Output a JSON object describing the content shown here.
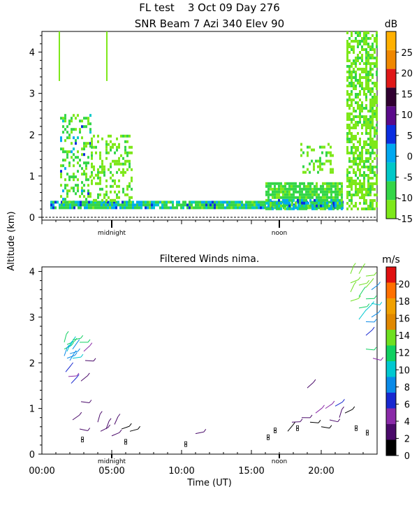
{
  "header": {
    "title_line1": "FL test    3 Oct 09 Day 276",
    "title_line2": "SNR Beam 7 Azi 340 Elev 90"
  },
  "shared": {
    "ylabel": "Altitude (km)",
    "xlabel": "Time (UT)",
    "x_ticks": [
      "00:00",
      "05:00",
      "10:00",
      "15:00",
      "20:00"
    ],
    "midnight_label": "midnight",
    "noon_label": "noon"
  },
  "chart_data": [
    {
      "type": "heatmap",
      "title": "",
      "ylabel": "Altitude (km)",
      "colorbar": {
        "unit": "dB",
        "ticks": [
          "25",
          "20",
          "15",
          "10",
          "5",
          "0",
          "-5",
          "-10",
          "-15"
        ],
        "range": [
          -15,
          30
        ],
        "colors": [
          "#7ee81a",
          "#34d648",
          "#00c8c8",
          "#00a8f0",
          "#0a2ee0",
          "#5a0a8a",
          "#300030",
          "#e01818",
          "#f08800",
          "#ffb000"
        ]
      },
      "y_ticks": [
        "0",
        "1",
        "2",
        "3",
        "4"
      ],
      "ylim": [
        0,
        4.5
      ],
      "xlim": [
        0,
        24
      ],
      "regions": [
        {
          "desc": "low clutter layer",
          "t0": 0.6,
          "t1": 21.5,
          "alt0": 0.2,
          "alt1": 0.4,
          "value": -8
        },
        {
          "desc": "convective column",
          "t0": 1.3,
          "t1": 3.5,
          "alt0": 0.4,
          "alt1": 2.5,
          "value": -10
        },
        {
          "desc": "scattered returns",
          "t0": 3.5,
          "t1": 6.5,
          "alt0": 0.4,
          "alt1": 2.0,
          "value": -12
        },
        {
          "desc": "afternoon boundary layer",
          "t0": 16,
          "t1": 21.5,
          "alt0": 0.2,
          "alt1": 0.85,
          "value": -9
        },
        {
          "desc": "elevated echoes",
          "t0": 18.5,
          "t1": 20.8,
          "alt0": 1.1,
          "alt1": 1.8,
          "value": -12
        },
        {
          "desc": "late columns",
          "t0": 21.8,
          "t1": 24,
          "alt0": 0.2,
          "alt1": 4.5,
          "value": -12
        }
      ]
    },
    {
      "type": "scatter",
      "title": "Filtered Winds nima.",
      "ylabel": "Altitude (km)",
      "xlabel": "Time (UT)",
      "colorbar": {
        "unit": "m/s",
        "ticks": [
          "20",
          "18",
          "16",
          "14",
          "12",
          "10",
          "8",
          "6",
          "4",
          "2",
          "0"
        ],
        "range": [
          0,
          22
        ],
        "colors": [
          "#000000",
          "#4a0a6a",
          "#8a2aa8",
          "#1828d0",
          "#0a8ae8",
          "#00c8d0",
          "#10d060",
          "#6ee020",
          "#e08800",
          "#f0a000",
          "#ff7000",
          "#e01010"
        ]
      },
      "y_ticks": [
        "0",
        "1",
        "2",
        "3",
        "4"
      ],
      "ylim": [
        0,
        4.1
      ],
      "xlim": [
        0,
        24
      ],
      "winds": [
        {
          "t": 1.6,
          "alt": 2.45,
          "speed": 11
        },
        {
          "t": 1.6,
          "alt": 2.3,
          "speed": 11
        },
        {
          "t": 1.6,
          "alt": 2.15,
          "speed": 9
        },
        {
          "t": 1.8,
          "alt": 2.4,
          "speed": 12
        },
        {
          "t": 1.8,
          "alt": 2.25,
          "speed": 10
        },
        {
          "t": 1.8,
          "alt": 2.1,
          "speed": 9
        },
        {
          "t": 2.0,
          "alt": 2.35,
          "speed": 10
        },
        {
          "t": 2.0,
          "alt": 2.2,
          "speed": 9
        },
        {
          "t": 2.0,
          "alt": 2.05,
          "speed": 8
        },
        {
          "t": 2.2,
          "alt": 2.5,
          "speed": 12
        },
        {
          "t": 2.2,
          "alt": 2.3,
          "speed": 8
        },
        {
          "t": 2.2,
          "alt": 2.1,
          "speed": 10
        },
        {
          "t": 1.7,
          "alt": 1.8,
          "speed": 6
        },
        {
          "t": 1.9,
          "alt": 1.7,
          "speed": 5
        },
        {
          "t": 2.1,
          "alt": 1.55,
          "speed": 6
        },
        {
          "t": 2.7,
          "alt": 2.45,
          "speed": 12
        },
        {
          "t": 3.0,
          "alt": 2.25,
          "speed": 5
        },
        {
          "t": 3.1,
          "alt": 2.05,
          "speed": 3
        },
        {
          "t": 2.8,
          "alt": 1.6,
          "speed": 3
        },
        {
          "t": 2.8,
          "alt": 1.15,
          "speed": 3
        },
        {
          "t": 2.2,
          "alt": 0.75,
          "speed": 2
        },
        {
          "t": 2.7,
          "alt": 0.55,
          "speed": 2
        },
        {
          "t": 2.9,
          "alt": 0.35,
          "speed": 0
        },
        {
          "t": 4.0,
          "alt": 0.7,
          "speed": 2
        },
        {
          "t": 4.2,
          "alt": 0.5,
          "speed": 3
        },
        {
          "t": 4.6,
          "alt": 0.55,
          "speed": 2
        },
        {
          "t": 5.0,
          "alt": 0.4,
          "speed": 3
        },
        {
          "t": 5.2,
          "alt": 0.65,
          "speed": 2
        },
        {
          "t": 5.7,
          "alt": 0.55,
          "speed": 1
        },
        {
          "t": 6.0,
          "alt": 0.3,
          "speed": 0
        },
        {
          "t": 6.3,
          "alt": 0.5,
          "speed": 1
        },
        {
          "t": 10.3,
          "alt": 0.25,
          "speed": 0
        },
        {
          "t": 11.0,
          "alt": 0.45,
          "speed": 2
        },
        {
          "t": 16.2,
          "alt": 0.4,
          "speed": 0
        },
        {
          "t": 16.7,
          "alt": 0.55,
          "speed": 0
        },
        {
          "t": 17.6,
          "alt": 0.5,
          "speed": 1
        },
        {
          "t": 17.9,
          "alt": 0.7,
          "speed": 2
        },
        {
          "t": 18.3,
          "alt": 0.6,
          "speed": 0
        },
        {
          "t": 18.6,
          "alt": 0.8,
          "speed": 3
        },
        {
          "t": 19.0,
          "alt": 1.45,
          "speed": 2
        },
        {
          "t": 19.2,
          "alt": 0.7,
          "speed": 1
        },
        {
          "t": 19.6,
          "alt": 0.9,
          "speed": 4
        },
        {
          "t": 20.0,
          "alt": 0.6,
          "speed": 1
        },
        {
          "t": 20.3,
          "alt": 1.0,
          "speed": 5
        },
        {
          "t": 20.6,
          "alt": 0.75,
          "speed": 2
        },
        {
          "t": 21.0,
          "alt": 1.05,
          "speed": 6
        },
        {
          "t": 21.3,
          "alt": 0.8,
          "speed": 2
        },
        {
          "t": 21.7,
          "alt": 0.9,
          "speed": 1
        },
        {
          "t": 22.1,
          "alt": 3.95,
          "speed": 14
        },
        {
          "t": 22.1,
          "alt": 3.75,
          "speed": 14
        },
        {
          "t": 22.1,
          "alt": 3.55,
          "speed": 13
        },
        {
          "t": 22.1,
          "alt": 3.35,
          "speed": 13
        },
        {
          "t": 22.7,
          "alt": 3.95,
          "speed": 14
        },
        {
          "t": 22.7,
          "alt": 3.7,
          "speed": 13
        },
        {
          "t": 22.7,
          "alt": 3.45,
          "speed": 12
        },
        {
          "t": 22.7,
          "alt": 3.2,
          "speed": 11
        },
        {
          "t": 22.7,
          "alt": 2.95,
          "speed": 10
        },
        {
          "t": 23.2,
          "alt": 3.9,
          "speed": 14
        },
        {
          "t": 23.2,
          "alt": 3.65,
          "speed": 13
        },
        {
          "t": 23.2,
          "alt": 3.4,
          "speed": 11
        },
        {
          "t": 23.2,
          "alt": 3.15,
          "speed": 10
        },
        {
          "t": 23.2,
          "alt": 2.9,
          "speed": 9
        },
        {
          "t": 23.2,
          "alt": 2.6,
          "speed": 7
        },
        {
          "t": 23.2,
          "alt": 2.3,
          "speed": 12
        },
        {
          "t": 23.6,
          "alt": 3.6,
          "speed": 9
        },
        {
          "t": 23.6,
          "alt": 3.3,
          "speed": 10
        },
        {
          "t": 23.6,
          "alt": 3.0,
          "speed": 8
        },
        {
          "t": 23.7,
          "alt": 2.1,
          "speed": 4
        },
        {
          "t": 22.5,
          "alt": 0.6,
          "speed": 0
        },
        {
          "t": 23.3,
          "alt": 0.5,
          "speed": 0
        }
      ]
    }
  ]
}
